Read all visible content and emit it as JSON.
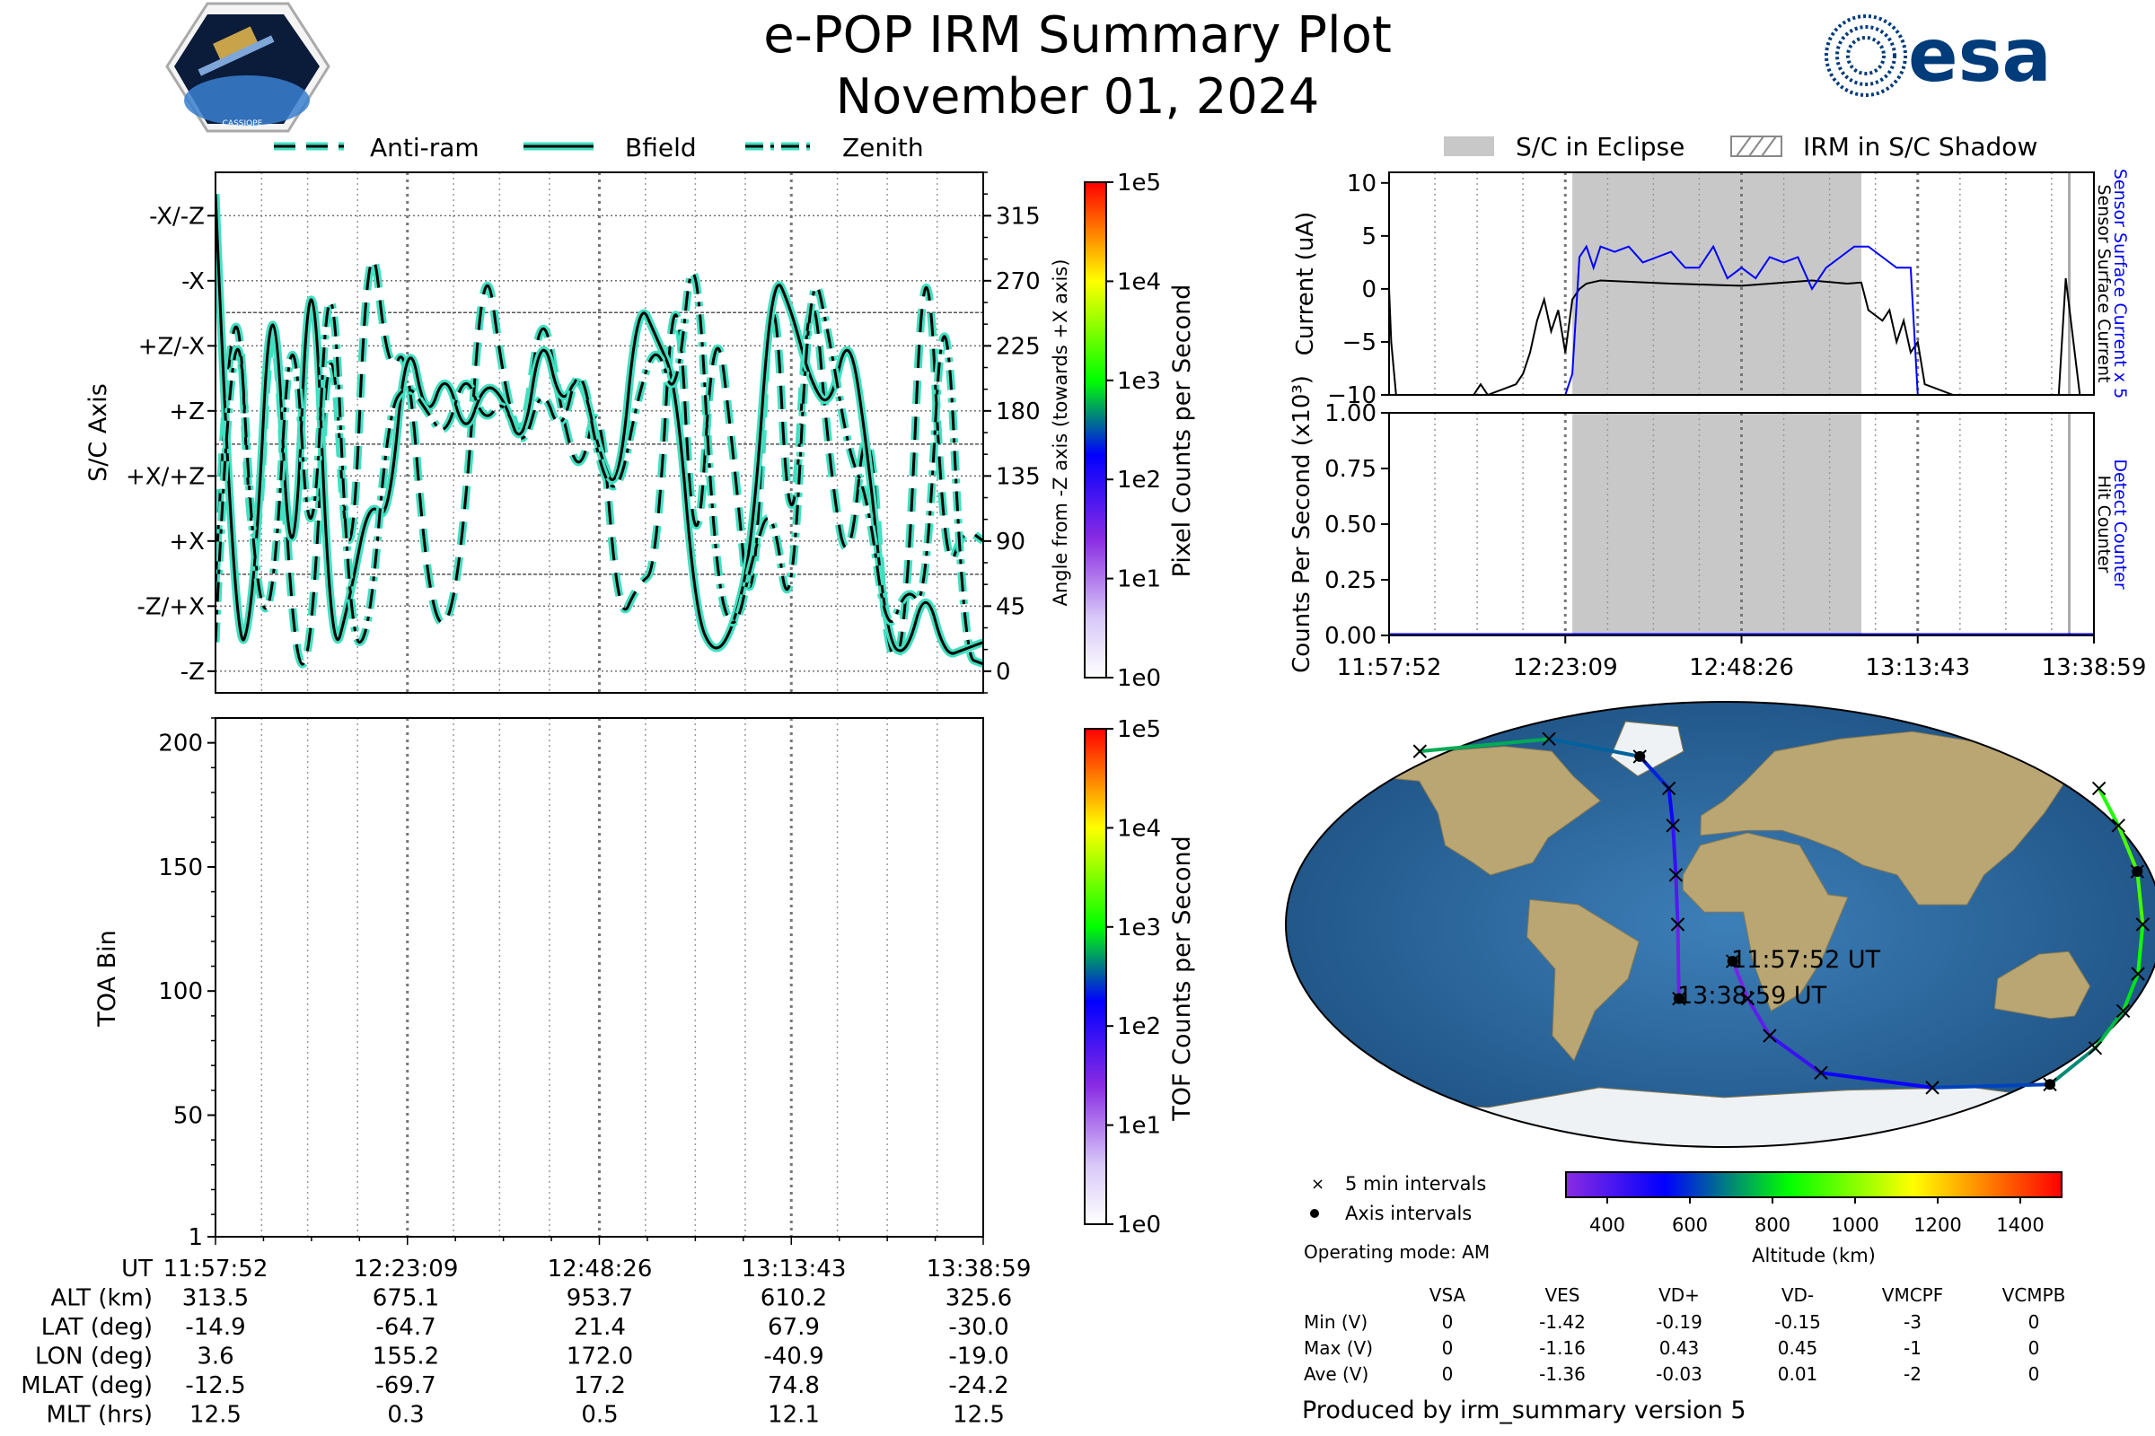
{
  "title": "e-POP IRM Summary Plot",
  "date": "November 01, 2024",
  "logos": {
    "left": "CASSIOPE",
    "right": "esa"
  },
  "legend_top_left": [
    "Anti-ram",
    "Bfield",
    "Zenith"
  ],
  "legend_top_right": [
    "S/C in Eclipse",
    "IRM in S/C Shadow"
  ],
  "time_ticks": [
    "11:57:52",
    "12:23:09",
    "12:48:26",
    "13:13:43",
    "13:38:59"
  ],
  "chart_data": [
    {
      "type": "line",
      "panel": "attitude",
      "ylabel": "S/C Axis",
      "ylabel_right": "Angle from -Z axis (towards +X axis)",
      "yticks_left": [
        "-X/-Z",
        "-X",
        "+Z/-X",
        "+Z",
        "+X/+Z",
        "+X",
        "-Z/+X",
        "-Z"
      ],
      "yticks_right": [
        "315",
        "270",
        "225",
        "180",
        "135",
        "90",
        "45",
        "0"
      ],
      "ylim": [
        -15,
        345
      ],
      "colorbar": {
        "label": "Pixel Counts per Second",
        "ticks": [
          "1e0",
          "1e1",
          "1e2",
          "1e3",
          "1e4",
          "1e5"
        ]
      },
      "series": [
        {
          "name": "Anti-ram",
          "values": [
            60,
            340,
            20,
            300,
            10,
            0,
            280,
            20,
            330,
            200,
            230,
            60,
            20,
            100,
            300,
            200,
            150,
            260,
            180,
            130,
            200,
            30,
            60,
            70,
            310,
            40,
            260,
            150,
            10,
            320,
            50,
            300,
            140,
            60,
            200,
            0,
            20,
            340,
            60,
            100,
            90
          ]
        },
        {
          "name": "Bfield",
          "values": [
            330,
            5,
            40,
            310,
            15,
            340,
            0,
            50,
            120,
            100,
            240,
            170,
            210,
            160,
            200,
            190,
            150,
            240,
            180,
            210,
            150,
            120,
            260,
            230,
            200,
            40,
            10,
            30,
            90,
            280,
            250,
            200,
            180,
            240,
            150,
            20,
            10,
            60,
            10,
            15,
            20
          ]
        },
        {
          "name": "Zenith",
          "values": [
            20,
            310,
            60,
            30,
            280,
            40,
            330,
            20,
            20,
            180,
            200,
            180,
            160,
            210,
            170,
            190,
            150,
            200,
            160,
            220,
            140,
            120,
            190,
            230,
            180,
            320,
            70,
            20,
            80,
            120,
            20,
            290,
            230,
            150,
            120,
            20,
            60,
            40,
            300,
            10,
            5
          ]
        }
      ]
    },
    {
      "type": "heatmap",
      "panel": "toa",
      "ylabel": "TOA Bin",
      "yticks": [
        "1",
        "50",
        "100",
        "150",
        "200"
      ],
      "ylim": [
        1,
        210
      ],
      "colorbar": {
        "label": "TOF Counts per Second",
        "ticks": [
          "1e0",
          "1e1",
          "1e2",
          "1e3",
          "1e4",
          "1e5"
        ]
      }
    },
    {
      "type": "line",
      "panel": "current",
      "ylabel": "Current (uA)",
      "ylabel_right_1": "Sensor Surface Current x 5",
      "ylabel_right_2": "Sensor Surface Current",
      "yticks": [
        "10",
        "5",
        "0",
        "−5",
        "−10"
      ],
      "ylim": [
        -10,
        11
      ],
      "eclipse_span": [
        0.26,
        0.67
      ],
      "series": [
        {
          "name": "Sensor Surface Current",
          "x": [
            0,
            0.003,
            0.01,
            0.12,
            0.13,
            0.14,
            0.18,
            0.19,
            0.2,
            0.21,
            0.22,
            0.23,
            0.24,
            0.25,
            0.26,
            0.27,
            0.28,
            0.3,
            0.4,
            0.5,
            0.6,
            0.65,
            0.67,
            0.68,
            0.7,
            0.71,
            0.72,
            0.73,
            0.74,
            0.75,
            0.76,
            0.8,
            0.95,
            0.96,
            0.98,
            1.0
          ],
          "y": [
            0,
            -5,
            -10,
            -10,
            -9,
            -10,
            -9,
            -8,
            -6,
            -3,
            -1,
            -4,
            -2,
            -6,
            -1,
            0,
            0.5,
            0.8,
            0.5,
            0.3,
            0.8,
            0.5,
            0.6,
            -2,
            -3,
            -2,
            -5,
            -3,
            -6,
            -5,
            -9,
            -10,
            -10,
            1,
            -10,
            -10
          ]
        },
        {
          "name": "Sensor Surface Current x 5",
          "x": [
            0.25,
            0.26,
            0.27,
            0.28,
            0.29,
            0.3,
            0.32,
            0.34,
            0.36,
            0.38,
            0.4,
            0.42,
            0.44,
            0.46,
            0.48,
            0.5,
            0.52,
            0.54,
            0.56,
            0.58,
            0.6,
            0.62,
            0.64,
            0.66,
            0.68,
            0.7,
            0.72,
            0.74,
            0.75
          ],
          "y": [
            -10,
            -8,
            3,
            4,
            2,
            4,
            3.5,
            4,
            2.5,
            3,
            3.5,
            2,
            2,
            4,
            1,
            2,
            1,
            3,
            2.5,
            3,
            0,
            2,
            3,
            4,
            4,
            3,
            2,
            2,
            -10
          ]
        }
      ]
    },
    {
      "type": "line",
      "panel": "counts",
      "ylabel": "Counts Per Second (x10³)",
      "ylabel_right_1": "Detect Counter",
      "ylabel_right_2": "Hit Counter",
      "yticks": [
        "1.00",
        "0.75",
        "0.50",
        "0.25",
        "0.00"
      ],
      "ylim": [
        0,
        1
      ],
      "eclipse_span": [
        0.26,
        0.67
      ],
      "series": [
        {
          "name": "Detect Counter",
          "values": [
            0,
            0,
            0,
            0,
            0,
            0
          ]
        },
        {
          "name": "Hit Counter",
          "values": [
            0,
            0,
            0,
            0,
            0,
            0
          ]
        }
      ]
    },
    {
      "type": "scatter",
      "panel": "map",
      "annotations": [
        "11:57:52 UT",
        "13:38:59 UT"
      ],
      "colorbar": {
        "label": "Altitude (km)",
        "ticks": [
          "400",
          "600",
          "800",
          "1000",
          "1200",
          "1400"
        ]
      },
      "legend": [
        "5 min intervals",
        "Axis intervals"
      ],
      "track_lon_lat_alt": [
        [
          3.6,
          -14.9,
          313
        ],
        [
          10,
          -30,
          350
        ],
        [
          20,
          -45,
          400
        ],
        [
          45,
          -60,
          480
        ],
        [
          100,
          -66,
          560
        ],
        [
          155.2,
          -64.7,
          675
        ],
        [
          165,
          -50,
          730
        ],
        [
          170,
          -35,
          780
        ],
        [
          172,
          -20,
          830
        ],
        [
          172,
          0,
          880
        ],
        [
          172,
          21.4,
          953
        ],
        [
          170,
          40,
          900
        ],
        [
          170,
          55,
          850
        ],
        [
          -150,
          70,
          780
        ],
        [
          -90,
          75,
          700
        ],
        [
          -40.9,
          67.9,
          610
        ],
        [
          -25,
          55,
          550
        ],
        [
          -22,
          40,
          480
        ],
        [
          -20,
          20,
          420
        ],
        [
          -19,
          0,
          370
        ],
        [
          -19,
          -30,
          325
        ]
      ]
    },
    {
      "type": "table",
      "panel": "orbit",
      "rows": [
        {
          "label": "UT",
          "values": [
            "11:57:52",
            "12:23:09",
            "12:48:26",
            "13:13:43",
            "13:38:59"
          ]
        },
        {
          "label": "ALT (km)",
          "values": [
            "313.5",
            "675.1",
            "953.7",
            "610.2",
            "325.6"
          ]
        },
        {
          "label": "LAT (deg)",
          "values": [
            "-14.9",
            "-64.7",
            "21.4",
            "67.9",
            "-30.0"
          ]
        },
        {
          "label": "LON (deg)",
          "values": [
            "3.6",
            "155.2",
            "172.0",
            "-40.9",
            "-19.0"
          ]
        },
        {
          "label": "MLAT (deg)",
          "values": [
            "-12.5",
            "-69.7",
            "17.2",
            "74.8",
            "-24.2"
          ]
        },
        {
          "label": "MLT (hrs)",
          "values": [
            "12.5",
            "0.3",
            "0.5",
            "12.1",
            "12.5"
          ]
        }
      ]
    },
    {
      "type": "table",
      "panel": "voltages",
      "operating_mode": "Operating mode: AM",
      "columns": [
        "",
        "VSA",
        "VES",
        "VD+",
        "VD-",
        "VMCPF",
        "VCMPB"
      ],
      "rows": [
        {
          "label": "Min (V)",
          "values": [
            "0",
            "-1.42",
            "-0.19",
            "-0.15",
            "-3",
            "0"
          ]
        },
        {
          "label": "Max (V)",
          "values": [
            "0",
            "-1.16",
            "0.43",
            "0.45",
            "-1",
            "0"
          ]
        },
        {
          "label": "Ave (V)",
          "values": [
            "0",
            "-1.36",
            "-0.03",
            "0.01",
            "-2",
            "0"
          ]
        }
      ]
    }
  ],
  "footer": "Produced by irm_summary version 5",
  "colors": {
    "bfield": "#000000",
    "halo": "#40e0c0",
    "detect": "#0000ff",
    "eclipse": "#c8c8c8"
  }
}
